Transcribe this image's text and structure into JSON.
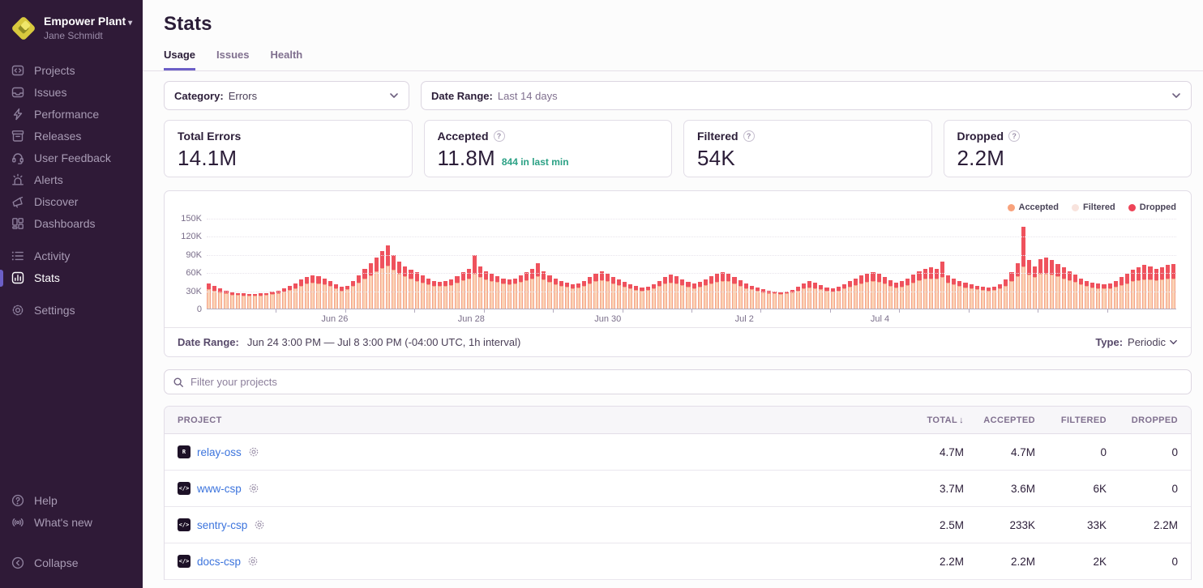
{
  "sidebar": {
    "org_name": "Empower Plant",
    "user_name": "Jane Schmidt",
    "items": [
      {
        "label": "Projects",
        "icon": "projects-icon",
        "active": false
      },
      {
        "label": "Issues",
        "icon": "issues-icon",
        "active": false
      },
      {
        "label": "Performance",
        "icon": "performance-icon",
        "active": false
      },
      {
        "label": "Releases",
        "icon": "releases-icon",
        "active": false
      },
      {
        "label": "User Feedback",
        "icon": "user-feedback-icon",
        "active": false
      },
      {
        "label": "Alerts",
        "icon": "alerts-icon",
        "active": false
      },
      {
        "label": "Discover",
        "icon": "discover-icon",
        "active": false
      },
      {
        "label": "Dashboards",
        "icon": "dashboards-icon",
        "active": false,
        "gap_after": true
      },
      {
        "label": "Activity",
        "icon": "activity-icon",
        "active": false
      },
      {
        "label": "Stats",
        "icon": "stats-icon",
        "active": true,
        "gap_after": true
      },
      {
        "label": "Settings",
        "icon": "settings-icon",
        "active": false
      }
    ],
    "footer_items": [
      {
        "label": "Help",
        "icon": "help-icon"
      },
      {
        "label": "What's new",
        "icon": "whats-new-icon"
      }
    ],
    "collapse": {
      "label": "Collapse",
      "icon": "collapse-icon"
    }
  },
  "header": {
    "title": "Stats",
    "tabs": [
      {
        "label": "Usage",
        "active": true
      },
      {
        "label": "Issues",
        "active": false
      },
      {
        "label": "Health",
        "active": false
      }
    ]
  },
  "filters": {
    "category_label": "Category:",
    "category_value": "Errors",
    "date_range_label": "Date Range:",
    "date_range_value": "Last 14 days"
  },
  "cards": [
    {
      "label": "Total Errors",
      "value": "14.1M",
      "has_info": false,
      "note": ""
    },
    {
      "label": "Accepted",
      "value": "11.8M",
      "has_info": true,
      "note": "844 in last min"
    },
    {
      "label": "Filtered",
      "value": "54K",
      "has_info": true,
      "note": ""
    },
    {
      "label": "Dropped",
      "value": "2.2M",
      "has_info": true,
      "note": ""
    }
  ],
  "chart_data": {
    "type": "bar",
    "stacked": true,
    "title": "",
    "xlabel": "",
    "ylabel": "",
    "unit": "events (thousands) per interval",
    "ylim": [
      0,
      150000
    ],
    "ytick_labels": [
      "0",
      "30K",
      "60K",
      "90K",
      "120K",
      "150K"
    ],
    "grid": "horizontal-dotted",
    "legend_position": "top-right",
    "legend": [
      {
        "name": "Accepted",
        "color": "#f8a27c"
      },
      {
        "name": "Filtered",
        "color": "#f8e3dd"
      },
      {
        "name": "Dropped",
        "color": "#ee4458"
      }
    ],
    "xticks": [
      {
        "label": "Jun 26",
        "pos_pct": 13.4
      },
      {
        "label": "Jun 28",
        "pos_pct": 27.7
      },
      {
        "label": "Jun 30",
        "pos_pct": 42.0
      },
      {
        "label": "Jul 2",
        "pos_pct": 56.3
      },
      {
        "label": "Jul 4",
        "pos_pct": 70.5
      }
    ],
    "x_range_note": "Jun 24 3:00 PM to Jul 8 3:00 PM, values in thousands (K) per bar",
    "series": [
      {
        "name": "Accepted",
        "values_k": [
          32,
          30,
          27,
          25,
          23,
          23,
          22,
          22,
          22,
          22,
          23,
          24,
          26,
          28,
          31,
          34,
          38,
          41,
          43,
          42,
          40,
          37,
          33,
          30,
          32,
          37,
          43,
          49,
          55,
          61,
          67,
          71,
          64,
          58,
          53,
          49,
          46,
          43,
          40,
          38,
          37,
          37,
          39,
          43,
          47,
          50,
          58,
          52,
          48,
          46,
          44,
          41,
          40,
          41,
          44,
          47,
          50,
          53,
          48,
          44,
          40,
          38,
          36,
          34,
          35,
          38,
          42,
          45,
          47,
          46,
          42,
          39,
          36,
          33,
          31,
          30,
          31,
          33,
          37,
          41,
          43,
          42,
          39,
          36,
          34,
          36,
          39,
          42,
          44,
          46,
          45,
          42,
          38,
          34,
          32,
          30,
          27,
          26,
          25,
          24,
          25,
          27,
          30,
          33,
          35,
          34,
          32,
          29,
          28,
          30,
          33,
          36,
          39,
          42,
          44,
          45,
          44,
          41,
          38,
          35,
          36,
          39,
          43,
          47,
          49,
          50,
          49,
          52,
          43,
          40,
          37,
          35,
          33,
          32,
          31,
          30,
          31,
          33,
          38,
          45,
          53,
          70,
          56,
          52,
          57,
          58,
          56,
          53,
          50,
          47,
          44,
          40,
          37,
          35,
          34,
          33,
          34,
          36,
          39,
          42,
          45,
          47,
          48,
          48,
          47,
          48,
          49,
          49
        ]
      },
      {
        "name": "Filtered",
        "values_note": "negligible at this scale (54K total across the whole range, not visible per bar)"
      },
      {
        "name": "Dropped",
        "values_k": [
          10,
          8,
          6,
          5,
          4,
          3,
          3,
          2,
          2,
          3,
          3,
          4,
          4,
          5,
          6,
          8,
          10,
          11,
          12,
          11,
          10,
          9,
          7,
          6,
          6,
          8,
          12,
          16,
          20,
          24,
          28,
          34,
          24,
          20,
          17,
          15,
          14,
          12,
          10,
          8,
          7,
          8,
          9,
          11,
          13,
          16,
          30,
          18,
          14,
          12,
          10,
          9,
          8,
          9,
          11,
          13,
          15,
          22,
          14,
          11,
          10,
          8,
          7,
          6,
          7,
          8,
          10,
          13,
          15,
          12,
          10,
          9,
          8,
          7,
          6,
          5,
          5,
          7,
          9,
          11,
          13,
          11,
          9,
          8,
          8,
          8,
          9,
          11,
          13,
          14,
          12,
          10,
          9,
          8,
          6,
          5,
          5,
          4,
          3,
          3,
          3,
          4,
          6,
          8,
          10,
          9,
          7,
          6,
          5,
          6,
          7,
          9,
          11,
          13,
          14,
          15,
          13,
          11,
          9,
          8,
          9,
          11,
          13,
          15,
          17,
          18,
          16,
          26,
          12,
          10,
          9,
          8,
          7,
          6,
          5,
          5,
          5,
          7,
          10,
          15,
          22,
          65,
          24,
          18,
          25,
          27,
          24,
          21,
          18,
          15,
          12,
          10,
          9,
          8,
          7,
          7,
          8,
          10,
          13,
          16,
          19,
          21,
          24,
          22,
          19,
          20,
          23,
          25
        ]
      }
    ]
  },
  "chart_footer": {
    "label": "Date Range:",
    "value": "Jun 24 3:00 PM — Jul 8 3:00 PM (-04:00 UTC, 1h interval)",
    "type_label": "Type:",
    "type_value": "Periodic"
  },
  "project_filter": {
    "placeholder": "Filter your projects"
  },
  "table": {
    "columns": [
      {
        "label": "Project",
        "key": "project"
      },
      {
        "label": "Total",
        "key": "total",
        "sorted": true
      },
      {
        "label": "Accepted",
        "key": "accepted"
      },
      {
        "label": "Filtered",
        "key": "filtered"
      },
      {
        "label": "Dropped",
        "key": "dropped"
      }
    ],
    "rows": [
      {
        "name": "relay-oss",
        "platform_icon": "relay-platform-icon",
        "glyph": "R",
        "total": "4.7M",
        "accepted": "4.7M",
        "filtered": "0",
        "dropped": "0"
      },
      {
        "name": "www-csp",
        "platform_icon": "csp-platform-icon",
        "glyph": "</>",
        "total": "3.7M",
        "accepted": "3.6M",
        "filtered": "6K",
        "dropped": "0"
      },
      {
        "name": "sentry-csp",
        "platform_icon": "csp-platform-icon",
        "glyph": "</>",
        "total": "2.5M",
        "accepted": "233K",
        "filtered": "33K",
        "dropped": "2.2M"
      },
      {
        "name": "docs-csp",
        "platform_icon": "csp-platform-icon",
        "glyph": "</>",
        "total": "2.2M",
        "accepted": "2.2M",
        "filtered": "2K",
        "dropped": "0"
      }
    ]
  },
  "colors": {
    "sidebar_bg": "#2f1a37",
    "accent_purple": "#6c5fc7",
    "heading": "#2b1d38",
    "muted_text": "#80708f",
    "link_blue": "#3c74dd",
    "note_teal": "#2ba185",
    "bar_accepted_fill": "#fbd3b6",
    "bar_accepted_border": "#f5a287",
    "bar_dropped": "#ef525d"
  }
}
